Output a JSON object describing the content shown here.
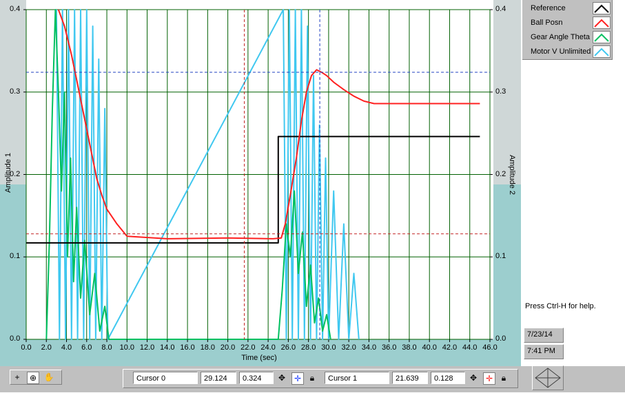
{
  "plot": {
    "x_axis_title": "Time (sec)",
    "y_axis_left_title": "Amplitude 1",
    "y_axis_right_title": "Amplitude 2",
    "x_ticks": [
      "0.0",
      "2.0",
      "4.0",
      "6.0",
      "8.0",
      "10.0",
      "12.0",
      "14.0",
      "16.0",
      "18.0",
      "20.0",
      "22.0",
      "24.0",
      "26.0",
      "28.0",
      "30.0",
      "32.0",
      "34.0",
      "36.0",
      "38.0",
      "40.0",
      "42.0",
      "44.0",
      "46.0"
    ],
    "y_ticks_left": [
      "0.0",
      "0.1",
      "0.2",
      "0.3",
      "0.4"
    ],
    "y_ticks_right": [
      "0.0",
      "0.1",
      "0.2",
      "0.3",
      "0.4"
    ]
  },
  "legend": {
    "items": [
      {
        "label": "Reference",
        "color": "#000000"
      },
      {
        "label": "Ball Posn",
        "color": "#ff2020"
      },
      {
        "label": "Gear Angle Theta",
        "color": "#00c060"
      },
      {
        "label": "Motor V Unlimited",
        "color": "#40c8f0"
      }
    ]
  },
  "info": {
    "help_text": "Press Ctrl-H for help.",
    "date": "7/23/14",
    "time": "7:41 PM"
  },
  "cursors": {
    "cursor0": {
      "name": "Cursor 0",
      "x": "29.124",
      "y": "0.324"
    },
    "cursor1": {
      "name": "Cursor 1",
      "x": "21.639",
      "y": "0.128"
    }
  },
  "chart_data": {
    "type": "line",
    "xlabel": "Time (sec)",
    "ylabel": "Amplitude 1",
    "y2label": "Amplitude 2",
    "xlim": [
      0,
      46
    ],
    "ylim": [
      0,
      0.4
    ],
    "grid": true,
    "legend_position": "top-right",
    "series": [
      {
        "name": "Reference",
        "color": "#000000",
        "x": [
          0,
          25.0,
          25.0,
          45
        ],
        "y": [
          0.117,
          0.117,
          0.246,
          0.246
        ]
      },
      {
        "name": "Ball Posn",
        "color": "#ff2020",
        "x": [
          3.2,
          3.8,
          4.5,
          5.0,
          5.5,
          6.0,
          6.5,
          7.0,
          7.5,
          8.0,
          9.0,
          10.0,
          14.0,
          20.0,
          24.5,
          25.3,
          25.7,
          26.2,
          26.8,
          27.3,
          27.8,
          28.3,
          28.8,
          29.3,
          29.8,
          30.5,
          31.5,
          32.5,
          33.5,
          34.5,
          38.0,
          45.0
        ],
        "y": [
          0.4,
          0.38,
          0.345,
          0.315,
          0.285,
          0.255,
          0.225,
          0.195,
          0.175,
          0.158,
          0.14,
          0.125,
          0.122,
          0.123,
          0.122,
          0.123,
          0.14,
          0.175,
          0.22,
          0.265,
          0.3,
          0.32,
          0.327,
          0.324,
          0.32,
          0.312,
          0.303,
          0.295,
          0.289,
          0.286,
          0.286,
          0.286
        ]
      },
      {
        "name": "Gear Angle Theta",
        "color": "#00c060",
        "x": [
          2.0,
          2.3,
          2.6,
          2.9,
          3.2,
          3.5,
          3.8,
          4.1,
          4.4,
          4.7,
          5.0,
          5.4,
          5.8,
          6.3,
          6.8,
          7.3,
          7.8,
          8.2,
          25.0,
          25.4,
          25.8,
          26.2,
          26.6,
          27.0,
          27.4,
          27.8,
          28.2,
          28.6,
          29.0,
          29.4,
          29.8,
          30.2
        ],
        "y": [
          0.0,
          0.12,
          0.28,
          0.4,
          0.3,
          0.18,
          0.3,
          0.1,
          0.22,
          0.07,
          0.16,
          0.05,
          0.12,
          0.03,
          0.08,
          0.01,
          0.04,
          0.0,
          0.0,
          0.06,
          0.14,
          0.1,
          0.18,
          0.08,
          0.13,
          0.04,
          0.09,
          0.02,
          0.05,
          0.01,
          0.03,
          0.0
        ]
      },
      {
        "name": "Motor V Unlimited",
        "color": "#40c8f0",
        "x": [
          3.0,
          3.3,
          3.6,
          3.9,
          4.2,
          4.5,
          4.8,
          5.1,
          5.4,
          5.7,
          6.0,
          6.3,
          6.6,
          6.9,
          7.2,
          7.5,
          7.8,
          8.1,
          25.5,
          25.8,
          26.1,
          26.4,
          26.7,
          27.0,
          27.3,
          27.6,
          27.9,
          28.2,
          28.5,
          28.8,
          29.1,
          29.4,
          29.7,
          30.0,
          30.5,
          31.0,
          31.5,
          32.0,
          32.5,
          33.0
        ],
        "y": [
          0.4,
          0.0,
          0.4,
          0.0,
          0.4,
          0.0,
          0.4,
          0.0,
          0.4,
          0.0,
          0.4,
          0.0,
          0.38,
          0.0,
          0.34,
          0.0,
          0.28,
          0.0,
          0.4,
          0.0,
          0.4,
          0.0,
          0.4,
          0.0,
          0.4,
          0.0,
          0.38,
          0.0,
          0.32,
          0.0,
          0.26,
          0.0,
          0.22,
          0.0,
          0.18,
          0.0,
          0.14,
          0.0,
          0.08,
          0.0
        ]
      }
    ]
  }
}
